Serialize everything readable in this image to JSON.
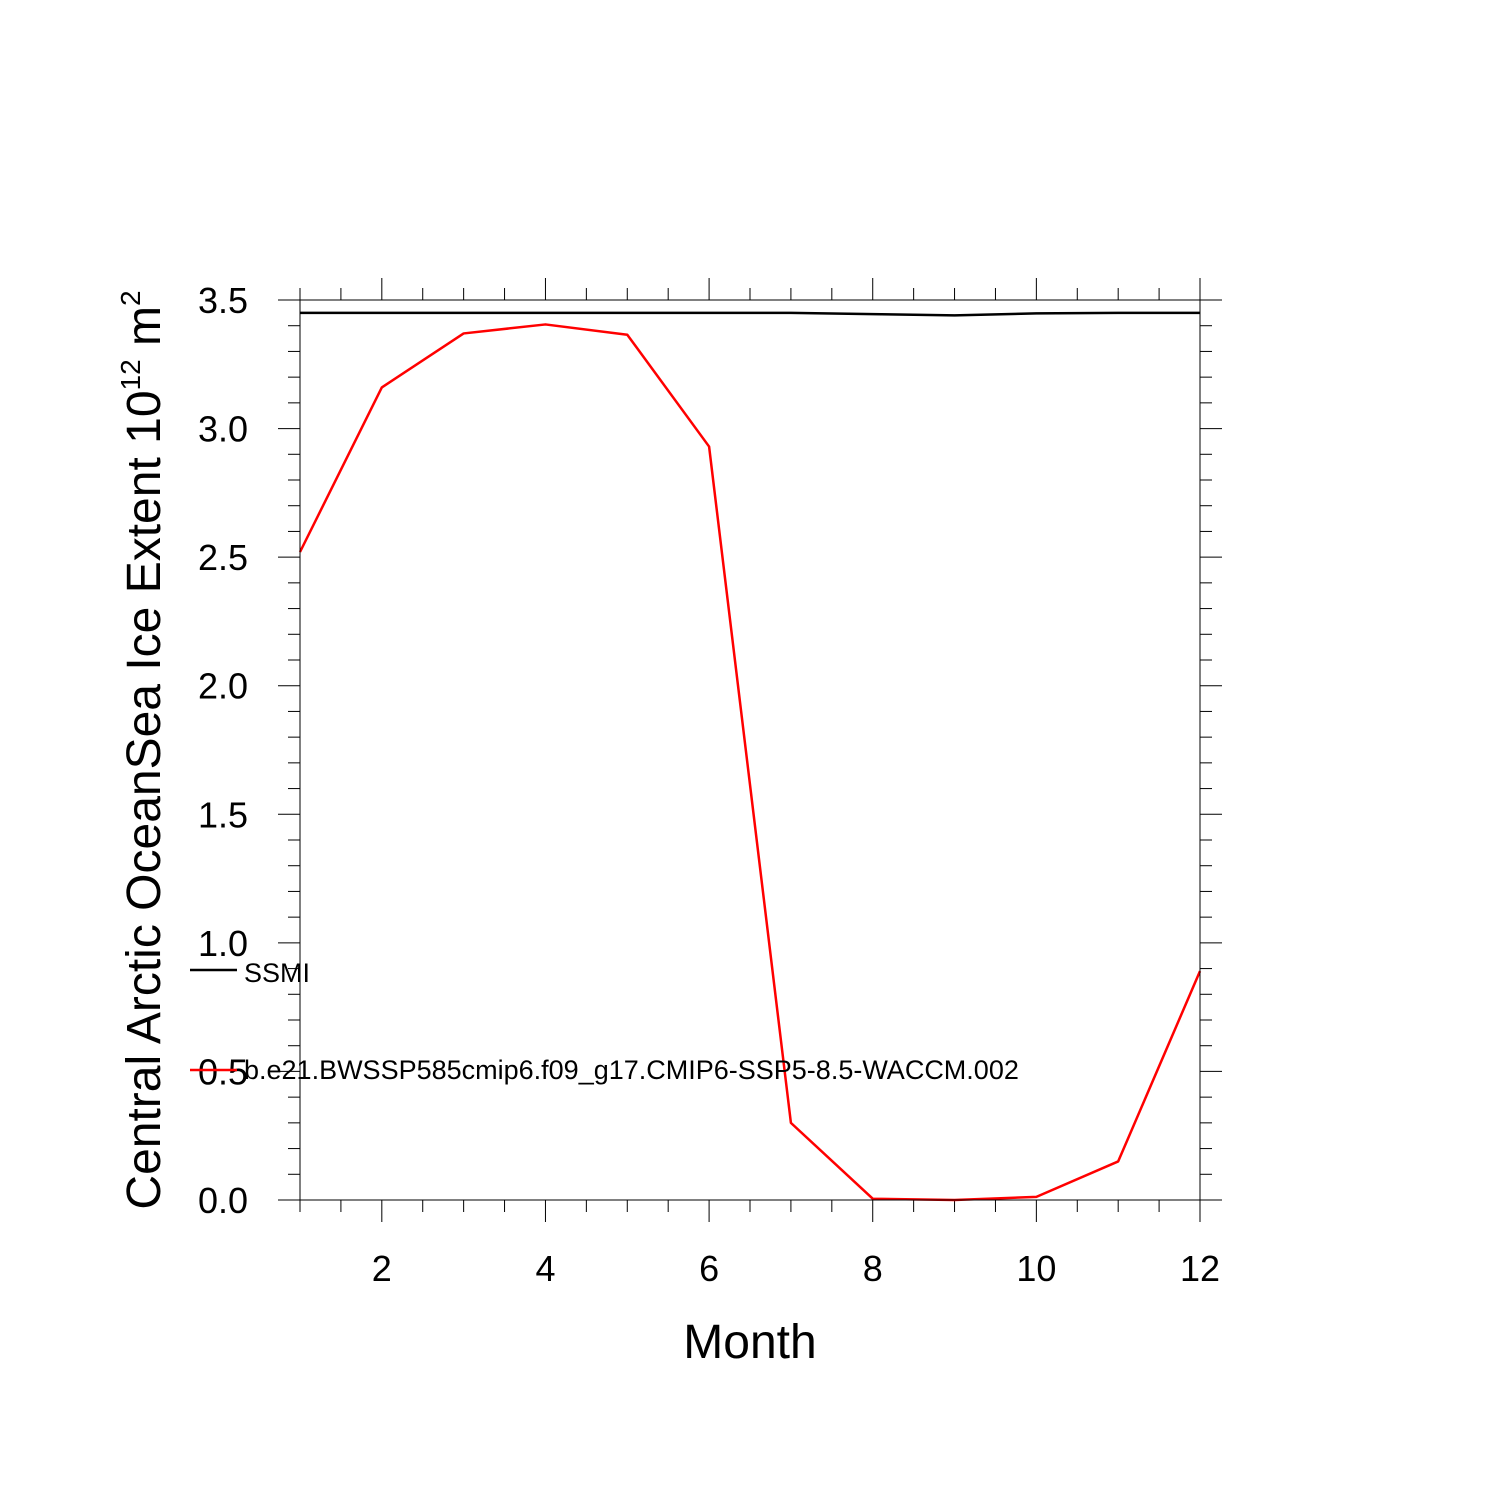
{
  "chart_data": {
    "type": "line",
    "title": "",
    "xlabel": "Month",
    "ylabel": {
      "prefix": "Central Arctic OceanSea Ice Extent 10",
      "exponent": "12",
      "unit": " m",
      "unit_exponent": "2"
    },
    "xlim": [
      1,
      12
    ],
    "ylim": [
      0.0,
      3.5
    ],
    "x_ticks": [
      2,
      4,
      6,
      8,
      10,
      12
    ],
    "x_tick_labels": [
      "2",
      "4",
      "6",
      "8",
      "10",
      "12"
    ],
    "y_ticks": [
      0.0,
      0.5,
      1.0,
      1.5,
      2.0,
      2.5,
      3.0,
      3.5
    ],
    "y_tick_labels": [
      "0.0",
      "0.5",
      "1.0",
      "1.5",
      "2.0",
      "2.5",
      "3.0",
      "3.5"
    ],
    "grid": false,
    "legend_position": "left",
    "x": [
      1,
      2,
      3,
      4,
      5,
      6,
      7,
      8,
      9,
      10,
      11,
      12
    ],
    "series": [
      {
        "name": "SSMI",
        "color": "#000000",
        "values": [
          3.45,
          3.45,
          3.45,
          3.45,
          3.45,
          3.45,
          3.45,
          3.445,
          3.44,
          3.448,
          3.45,
          3.45
        ]
      },
      {
        "name": "b.e21.BWSSP585cmip6.f09_g17.CMIP6-SSP5-8.5-WACCM.002",
        "color": "#ff0000",
        "values": [
          2.52,
          3.16,
          3.37,
          3.405,
          3.365,
          2.93,
          0.3,
          0.005,
          0.0,
          0.012,
          0.15,
          0.89
        ]
      }
    ]
  }
}
